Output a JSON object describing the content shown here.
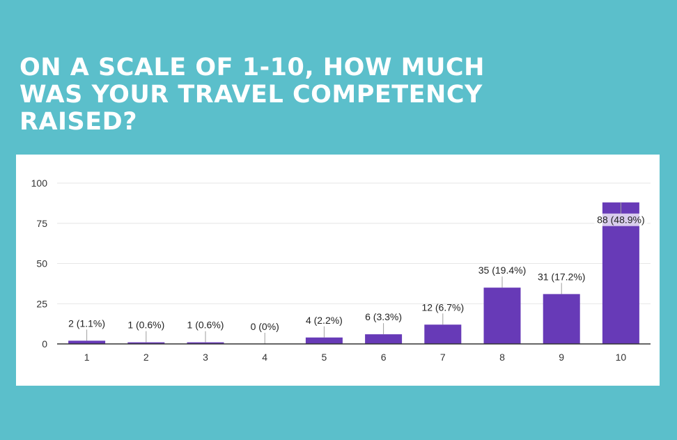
{
  "header": {
    "title": "ON A SCALE OF 1-10, HOW MUCH WAS YOUR TRAVEL COMPETENCY RAISED?"
  },
  "colors": {
    "background": "#5bbfcb",
    "bar": "#673ab7",
    "gridline": "#e6e6e6",
    "axis": "#333333"
  },
  "chart_data": {
    "type": "bar",
    "title": "ON A SCALE OF 1-10, HOW MUCH WAS YOUR TRAVEL COMPETENCY RAISED?",
    "xlabel": "",
    "ylabel": "",
    "categories": [
      "1",
      "2",
      "3",
      "4",
      "5",
      "6",
      "7",
      "8",
      "9",
      "10"
    ],
    "values": [
      2,
      1,
      1,
      0,
      4,
      6,
      12,
      35,
      31,
      88
    ],
    "data_labels": [
      "2 (1.1%)",
      "1 (0.6%)",
      "1 (0.6%)",
      "0 (0%)",
      "4 (2.2%)",
      "6 (3.3%)",
      "12 (6.7%)",
      "35 (19.4%)",
      "31 (17.2%)",
      "88 (48.9%)"
    ],
    "ylim": [
      0,
      100
    ],
    "yticks": [
      0,
      25,
      50,
      75,
      100
    ],
    "grid": true,
    "legend": "none"
  }
}
